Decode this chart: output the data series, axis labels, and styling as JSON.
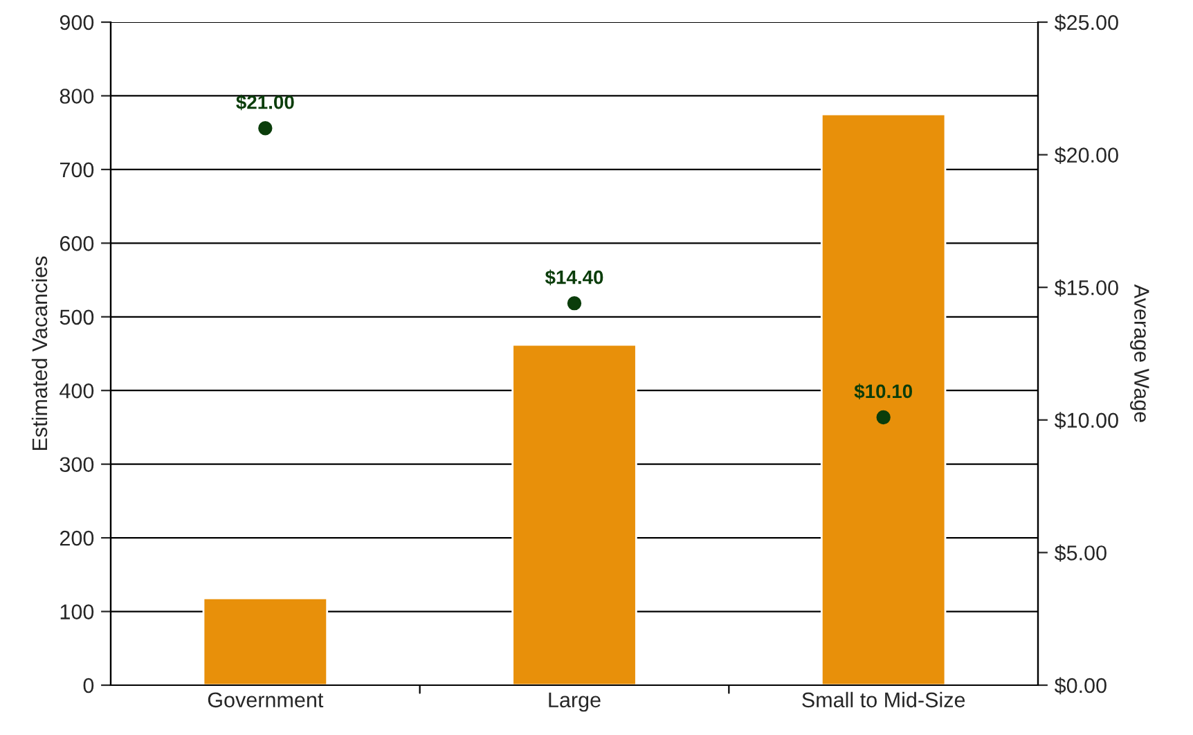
{
  "chart_data": {
    "type": "bar",
    "categories": [
      "Government",
      "Large",
      "Small to Mid-Size"
    ],
    "series": [
      {
        "color": "#e8900a",
        "values": [
          118,
          462,
          775
        ]
      },
      {
        "type": "scatter",
        "axis": "y2",
        "color": "#0b3d0b",
        "values": [
          21.0,
          14.4,
          10.1
        ],
        "value_labels": [
          "$21.00",
          "$14.40",
          "$10.10"
        ]
      }
    ],
    "ylabel": "Estimated Vacancies",
    "y2label": "Average Wage",
    "ylim": [
      0,
      900
    ],
    "yticks": [
      0,
      100,
      200,
      300,
      400,
      500,
      600,
      700,
      800,
      900
    ],
    "y2lim": [
      0,
      25
    ],
    "y2ticks": [
      {
        "value": 0,
        "label": "$0.00"
      },
      {
        "value": 5,
        "label": "$5.00"
      },
      {
        "value": 10,
        "label": "$10.00"
      },
      {
        "value": 15,
        "label": "$15.00"
      },
      {
        "value": 20,
        "label": "$20.00"
      },
      {
        "value": 25,
        "label": "$25.00"
      }
    ],
    "grid": "y",
    "marker": "circle",
    "legend": false
  }
}
